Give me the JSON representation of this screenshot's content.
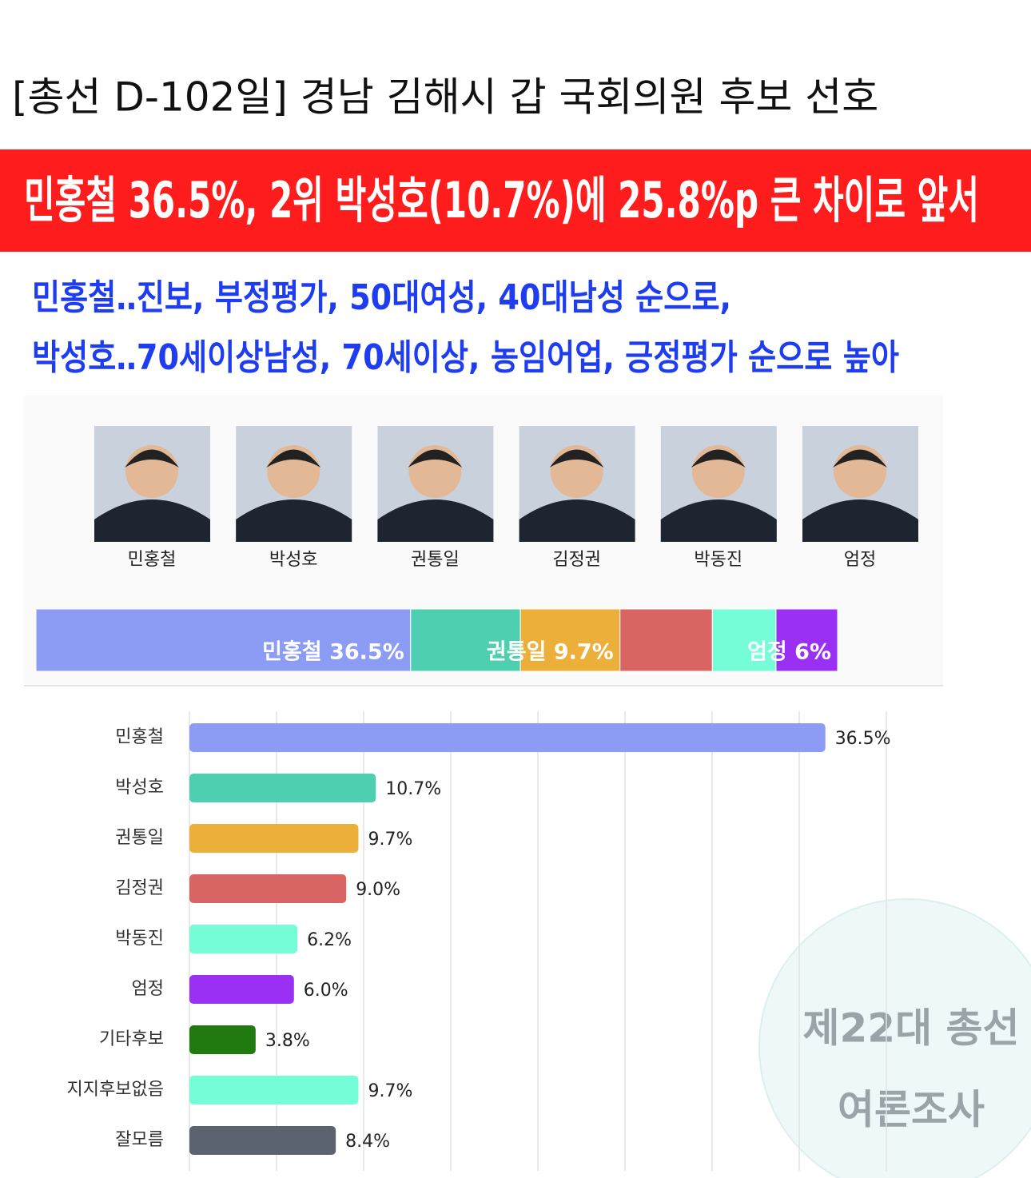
{
  "header": {
    "title": "[총선 D-102일] 경남 김해시 갑 국회의원 후보 선호",
    "banner": "민홍철 36.5%, 2위 박성호(10.7%)에 25.8%p 큰 차이로 앞서",
    "subtitle": [
      "민홍철‥진보, 부정평가, 50대여성, 40대남성 순으로,",
      "박성호‥70세이상남성, 70세이상, 농임어업, 긍정평가 순으로 높아"
    ]
  },
  "candidates": [
    "민홍철",
    "박성호",
    "권통일",
    "김정권",
    "박동진",
    "엄정"
  ],
  "chart_data": [
    {
      "type": "stacked_bar",
      "categories": [
        "민홍철",
        "박성호",
        "권통일",
        "김정권",
        "박동진",
        "엄정"
      ],
      "values": [
        36.5,
        10.7,
        9.7,
        9.0,
        6.2,
        6.0
      ],
      "value_labels": [
        "민홍철 36.5%",
        null,
        "권통일 9.7%",
        null,
        null,
        "엄정 6%"
      ],
      "colors": [
        "#8c9cf5",
        "#4ecfb0",
        "#ecaf3a",
        "#d86464",
        "#74fdd6",
        "#9b30f5"
      ]
    },
    {
      "type": "hbar",
      "categories": [
        "민홍철",
        "박성호",
        "권통일",
        "김정권",
        "박동진",
        "엄정",
        "기타후보",
        "지지후보없음",
        "잘모름"
      ],
      "values": [
        36.5,
        10.7,
        9.7,
        9.0,
        6.2,
        6.0,
        3.8,
        9.7,
        8.4
      ],
      "value_labels": [
        "36.5%",
        "10.7%",
        "9.7%",
        "9.0%",
        "6.2%",
        "6.0%",
        "3.8%",
        "9.7%",
        "8.4%"
      ],
      "colors": [
        "#8c9cf5",
        "#4ecfb0",
        "#ecaf3a",
        "#d86464",
        "#74fdd6",
        "#9b30f5",
        "#217a10",
        "#74fdd6",
        "#5c6370"
      ],
      "xlim": [
        0,
        40
      ],
      "xticks": [
        0,
        5,
        10,
        15,
        20,
        25,
        30,
        35,
        40
      ],
      "grid": true
    }
  ],
  "badge": [
    "제22대 총선",
    "여론조사"
  ]
}
